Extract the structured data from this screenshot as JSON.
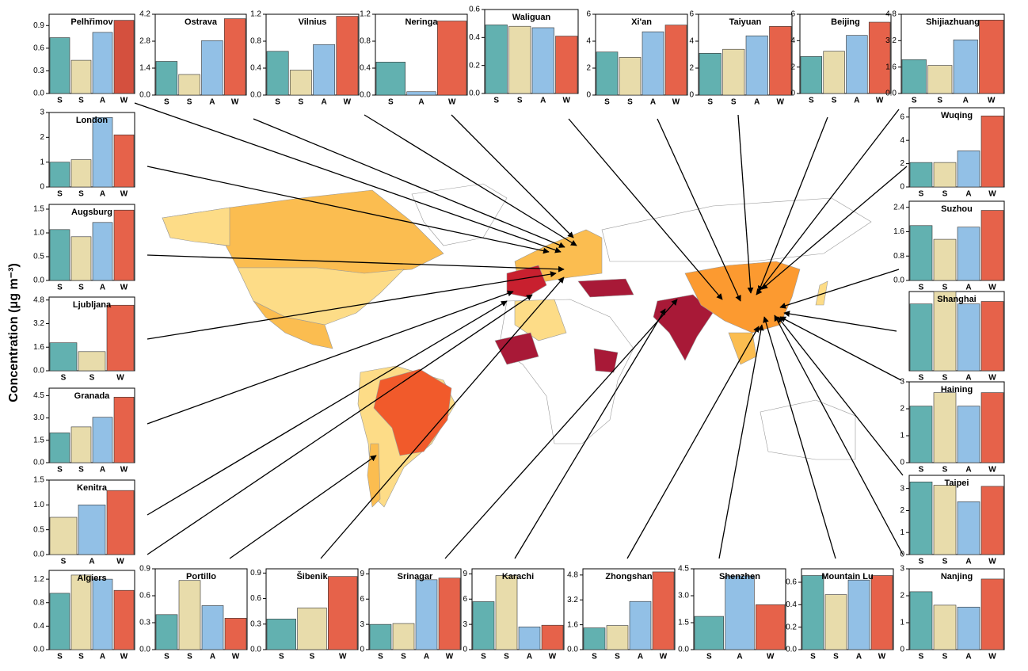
{
  "y_label": "Concentration  (μg m⁻³)",
  "chart_data": [
    {
      "type": "bar",
      "title": "Pelhřimov",
      "categories": [
        "S",
        "S",
        "A",
        "W"
      ],
      "values": [
        0.74,
        0.44,
        0.81,
        0.97
      ],
      "colors": [
        "#62b1b0",
        "#e8dcab",
        "#92c0e6",
        "#d4503e"
      ],
      "ylim": [
        0,
        1.05
      ],
      "yticks": [
        {
          "value": 0,
          "label": "0.0"
        },
        0.3,
        0.6,
        0.9
      ]
    },
    {
      "type": "bar",
      "title": "Ostrava",
      "categories": [
        "S",
        "S",
        "A",
        "W"
      ],
      "values": [
        1.75,
        1.07,
        2.83,
        3.97
      ],
      "colors": [
        "#62b1b0",
        "#e8dcab",
        "#92c0e6",
        "#e6624a"
      ],
      "ylim": [
        0,
        4.2
      ],
      "yticks": [
        {
          "value": 0,
          "label": "0.0"
        },
        1.4,
        2.8,
        4.2
      ]
    },
    {
      "type": "bar",
      "title": "Vilnius",
      "categories": [
        "S",
        "S",
        "A",
        "W"
      ],
      "values": [
        0.65,
        0.37,
        0.75,
        1.17
      ],
      "colors": [
        "#62b1b0",
        "#e8dcab",
        "#92c0e6",
        "#e6624a"
      ],
      "ylim": [
        0,
        1.2
      ],
      "yticks": [
        {
          "value": 0,
          "label": "0.0"
        },
        0.4,
        0.8,
        1.2
      ]
    },
    {
      "type": "bar",
      "title": "Neringa",
      "categories": [
        "S",
        "A",
        "W"
      ],
      "values": [
        0.49,
        0.05,
        1.1
      ],
      "colors": [
        "#62b1b0",
        "#92c0e6",
        "#e6624a"
      ],
      "ylim": [
        0,
        1.2
      ],
      "yticks": [
        {
          "value": 0,
          "label": "0.0"
        },
        0.4,
        0.8,
        1.2
      ]
    },
    {
      "type": "bar",
      "title": "Waliguan",
      "categories": [
        "S",
        "S",
        "A",
        "W"
      ],
      "values": [
        0.49,
        0.48,
        0.47,
        0.41
      ],
      "colors": [
        "#62b1b0",
        "#e8dcab",
        "#92c0e6",
        "#e6624a"
      ],
      "ylim": [
        0,
        0.6
      ],
      "yticks": [
        {
          "value": 0,
          "label": "0.0"
        },
        0.2,
        0.4,
        0.6
      ]
    },
    {
      "type": "bar",
      "title": "Xi'an",
      "categories": [
        "S",
        "S",
        "A",
        "W"
      ],
      "values": [
        3.2,
        2.8,
        4.7,
        5.2
      ],
      "colors": [
        "#62b1b0",
        "#e8dcab",
        "#92c0e6",
        "#e6624a"
      ],
      "ylim": [
        0,
        6
      ],
      "yticks": [
        0,
        2,
        4,
        6
      ]
    },
    {
      "type": "bar",
      "title": "Taiyuan",
      "categories": [
        "S",
        "S",
        "A",
        "W"
      ],
      "values": [
        3.1,
        3.4,
        4.4,
        5.1
      ],
      "colors": [
        "#62b1b0",
        "#e8dcab",
        "#92c0e6",
        "#e6624a"
      ],
      "ylim": [
        0,
        6
      ],
      "yticks": [
        0,
        2,
        4,
        6
      ]
    },
    {
      "type": "bar",
      "title": "Beijing",
      "categories": [
        "S",
        "S",
        "A",
        "W"
      ],
      "values": [
        2.8,
        3.2,
        4.4,
        5.4
      ],
      "colors": [
        "#62b1b0",
        "#e8dcab",
        "#92c0e6",
        "#e6624a"
      ],
      "ylim": [
        0,
        6
      ],
      "yticks": [
        0,
        2,
        4,
        6
      ]
    },
    {
      "type": "bar",
      "title": "Shijiazhuang",
      "categories": [
        "S",
        "S",
        "A",
        "W"
      ],
      "values": [
        2.05,
        1.7,
        3.25,
        4.45
      ],
      "colors": [
        "#62b1b0",
        "#e8dcab",
        "#92c0e6",
        "#e6624a"
      ],
      "ylim": [
        0,
        4.8
      ],
      "yticks": [
        {
          "value": 0,
          "label": "0.0"
        },
        1.6,
        3.2,
        4.8
      ]
    },
    {
      "type": "bar",
      "title": "Wuqing",
      "categories": [
        "S",
        "S",
        "A",
        "W"
      ],
      "values": [
        2.1,
        2.1,
        3.1,
        6.1
      ],
      "colors": [
        "#62b1b0",
        "#e8dcab",
        "#92c0e6",
        "#e6624a"
      ],
      "ylim": [
        0,
        6.8
      ],
      "yticks": [
        0,
        2,
        4,
        6
      ]
    },
    {
      "type": "bar",
      "title": "Suzhou",
      "categories": [
        "S",
        "S",
        "A",
        "W"
      ],
      "values": [
        1.8,
        1.35,
        1.75,
        2.3
      ],
      "colors": [
        "#62b1b0",
        "#e8dcab",
        "#92c0e6",
        "#e6624a"
      ],
      "ylim": [
        0,
        2.6
      ],
      "yticks": [
        {
          "value": 0,
          "label": "0.0"
        },
        0.8,
        1.6,
        2.4
      ]
    },
    {
      "type": "bar",
      "title": "Shanghai",
      "categories": [
        "S",
        "S",
        "A",
        "W"
      ],
      "values": [
        2.7,
        3.2,
        2.7,
        2.8
      ],
      "colors": [
        "#62b1b0",
        "#e8dcab",
        "#92c0e6",
        "#e6624a"
      ],
      "ylim": [
        0,
        3.2
      ]
    },
    {
      "type": "bar",
      "title": "Haining",
      "categories": [
        "S",
        "S",
        "A",
        "W"
      ],
      "values": [
        2.1,
        2.6,
        2.1,
        2.6
      ],
      "colors": [
        "#62b1b0",
        "#e8dcab",
        "#92c0e6",
        "#e6624a"
      ],
      "ylim": [
        0,
        3
      ],
      "yticks": [
        0,
        1,
        2,
        3
      ]
    },
    {
      "type": "bar",
      "title": "Taipei",
      "categories": [
        "S",
        "S",
        "A",
        "W"
      ],
      "values": [
        3.3,
        3.15,
        2.4,
        3.1
      ],
      "colors": [
        "#62b1b0",
        "#e8dcab",
        "#92c0e6",
        "#e6624a"
      ],
      "ylim": [
        0,
        3.6
      ],
      "yticks": [
        0,
        1,
        2,
        3
      ]
    },
    {
      "type": "bar",
      "title": "Nanjing",
      "categories": [
        "S",
        "S",
        "A",
        "W"
      ],
      "values": [
        2.15,
        1.65,
        1.58,
        2.62
      ],
      "colors": [
        "#62b1b0",
        "#e8dcab",
        "#92c0e6",
        "#e6624a"
      ],
      "ylim": [
        0,
        3
      ],
      "yticks": [
        0,
        1,
        2,
        3
      ]
    },
    {
      "type": "bar",
      "title": "London",
      "categories": [
        "S",
        "S",
        "A",
        "W"
      ],
      "values": [
        1.0,
        1.1,
        2.8,
        2.1
      ],
      "colors": [
        "#62b1b0",
        "#e8dcab",
        "#92c0e6",
        "#e6624a"
      ],
      "ylim": [
        0,
        3
      ],
      "yticks": [
        0,
        1,
        2,
        3
      ]
    },
    {
      "type": "bar",
      "title": "Augsburg",
      "categories": [
        "S",
        "S",
        "A",
        "W"
      ],
      "values": [
        1.07,
        0.92,
        1.22,
        1.48
      ],
      "colors": [
        "#62b1b0",
        "#e8dcab",
        "#92c0e6",
        "#e6624a"
      ],
      "ylim": [
        0,
        1.6
      ],
      "yticks": [
        {
          "value": 0,
          "label": "0.0"
        },
        0.5,
        {
          "value": 1,
          "label": "1.0"
        },
        1.5
      ]
    },
    {
      "type": "bar",
      "title": "Ljubljana",
      "categories": [
        "S",
        "S",
        "W"
      ],
      "values": [
        1.9,
        1.3,
        4.45
      ],
      "colors": [
        "#62b1b0",
        "#e8dcab",
        "#e6624a"
      ],
      "ylim": [
        0,
        5
      ],
      "yticks": [
        {
          "value": 0,
          "label": "0.0"
        },
        1.6,
        3.2,
        4.8
      ]
    },
    {
      "type": "bar",
      "title": "Granada",
      "categories": [
        "S",
        "S",
        "A",
        "W"
      ],
      "values": [
        2.0,
        2.4,
        3.05,
        4.4
      ],
      "colors": [
        "#62b1b0",
        "#e8dcab",
        "#92c0e6",
        "#e6624a"
      ],
      "ylim": [
        0,
        5
      ],
      "yticks": [
        {
          "value": 0,
          "label": "0.0"
        },
        1.5,
        {
          "value": 3,
          "label": "3.0"
        },
        4.5
      ]
    },
    {
      "type": "bar",
      "title": "Kenitra",
      "categories": [
        "S",
        "A",
        "W"
      ],
      "values": [
        0.75,
        1.0,
        1.29
      ],
      "colors": [
        "#e8dcab",
        "#92c0e6",
        "#e6624a"
      ],
      "ylim": [
        0,
        1.5
      ],
      "yticks": [
        {
          "value": 0,
          "label": "0.0"
        },
        0.5,
        {
          "value": 1,
          "label": "1.0"
        },
        1.5
      ]
    },
    {
      "type": "bar",
      "title": "Algiers",
      "categories": [
        "S",
        "S",
        "A",
        "W"
      ],
      "values": [
        0.96,
        1.27,
        1.2,
        1.01
      ],
      "colors": [
        "#62b1b0",
        "#e8dcab",
        "#92c0e6",
        "#e6624a"
      ],
      "ylim": [
        0,
        1.35
      ],
      "yticks": [
        {
          "value": 0,
          "label": "0.0"
        },
        0.4,
        0.8,
        1.2
      ]
    },
    {
      "type": "bar",
      "title": "Portillo",
      "categories": [
        "S",
        "S",
        "A",
        "W"
      ],
      "values": [
        0.39,
        0.77,
        0.49,
        0.35
      ],
      "colors": [
        "#62b1b0",
        "#e8dcab",
        "#92c0e6",
        "#e6624a"
      ],
      "ylim": [
        0,
        0.9
      ],
      "yticks": [
        {
          "value": 0,
          "label": "0.0"
        },
        0.3,
        0.6,
        0.9
      ]
    },
    {
      "type": "bar",
      "title": "Šibenik",
      "categories": [
        "S",
        "S",
        "W"
      ],
      "values": [
        0.36,
        0.49,
        0.86
      ],
      "colors": [
        "#62b1b0",
        "#e8dcab",
        "#e6624a"
      ],
      "ylim": [
        0,
        0.95
      ],
      "yticks": [
        {
          "value": 0,
          "label": "0.0"
        },
        0.3,
        0.6,
        0.9
      ]
    },
    {
      "type": "bar",
      "title": "Srinagar",
      "categories": [
        "S",
        "S",
        "A",
        "W"
      ],
      "values": [
        3.0,
        3.1,
        8.3,
        8.5
      ],
      "colors": [
        "#62b1b0",
        "#e8dcab",
        "#92c0e6",
        "#e6624a"
      ],
      "ylim": [
        0,
        9.6
      ],
      "yticks": [
        0,
        3,
        6,
        9
      ]
    },
    {
      "type": "bar",
      "title": "Karachi",
      "categories": [
        "S",
        "S",
        "A",
        "W"
      ],
      "values": [
        5.7,
        8.8,
        2.7,
        2.9
      ],
      "colors": [
        "#62b1b0",
        "#e8dcab",
        "#92c0e6",
        "#e6624a"
      ],
      "ylim": [
        0,
        9.6
      ],
      "yticks": [
        0,
        3,
        6,
        9
      ]
    },
    {
      "type": "bar",
      "title": "Zhongshan",
      "categories": [
        "S",
        "S",
        "A",
        "W"
      ],
      "values": [
        1.4,
        1.55,
        3.1,
        5.0
      ],
      "colors": [
        "#62b1b0",
        "#e8dcab",
        "#92c0e6",
        "#e6624a"
      ],
      "ylim": [
        0,
        5.2
      ],
      "yticks": [
        {
          "value": 0,
          "label": "0.0"
        },
        1.6,
        3.2,
        4.8
      ]
    },
    {
      "type": "bar",
      "title": "Shenzhen",
      "categories": [
        "S",
        "A",
        "W"
      ],
      "values": [
        1.85,
        4.1,
        2.5
      ],
      "colors": [
        "#62b1b0",
        "#92c0e6",
        "#e6624a"
      ],
      "ylim": [
        0,
        4.5
      ],
      "yticks": [
        {
          "value": 0,
          "label": "0.0"
        },
        1.5,
        {
          "value": 3,
          "label": "3.0"
        },
        4.5
      ]
    },
    {
      "type": "bar",
      "title": "Mountain Lu",
      "categories": [
        "S",
        "S",
        "A",
        "W"
      ],
      "values": [
        0.66,
        0.49,
        0.62,
        0.66
      ],
      "colors": [
        "#62b1b0",
        "#e8dcab",
        "#92c0e6",
        "#e6624a"
      ],
      "ylim": [
        0,
        0.72
      ],
      "yticks": [
        {
          "value": 0,
          "label": "0.0"
        },
        0.2,
        0.4,
        0.6
      ]
    }
  ]
}
